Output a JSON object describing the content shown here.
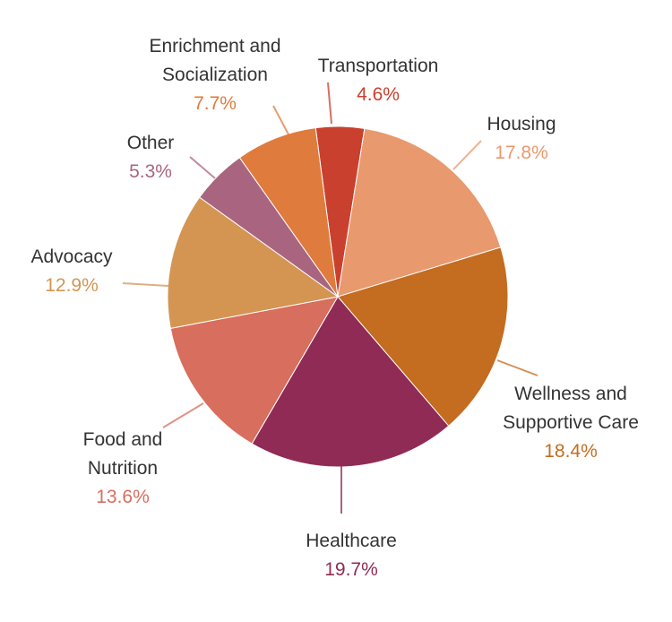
{
  "chart_data": {
    "type": "pie",
    "title": "",
    "slices": [
      {
        "label": "Transportation",
        "lines": [
          "Transportation"
        ],
        "value": 4.6,
        "value_label": "4.6%",
        "color": "#c9402e"
      },
      {
        "label": "Housing",
        "lines": [
          "Housing"
        ],
        "value": 17.8,
        "value_label": "17.8%",
        "color": "#e9996e"
      },
      {
        "label": "Wellness and Supportive Care",
        "lines": [
          "Wellness and",
          "Supportive Care"
        ],
        "value": 18.4,
        "value_label": "18.4%",
        "color": "#c46c20"
      },
      {
        "label": "Healthcare",
        "lines": [
          "Healthcare"
        ],
        "value": 19.7,
        "value_label": "19.7%",
        "color": "#902b55"
      },
      {
        "label": "Food and Nutrition",
        "lines": [
          "Food and",
          "Nutrition"
        ],
        "value": 13.6,
        "value_label": "13.6%",
        "color": "#d86e5d"
      },
      {
        "label": "Advocacy",
        "lines": [
          "Advocacy"
        ],
        "value": 12.9,
        "value_label": "12.9%",
        "color": "#d49553"
      },
      {
        "label": "Other",
        "lines": [
          "Other"
        ],
        "value": 5.3,
        "value_label": "5.3%",
        "color": "#a96580"
      },
      {
        "label": "Enrichment and Socialization",
        "lines": [
          "Enrichment and",
          "Socialization"
        ],
        "value": 7.7,
        "value_label": "7.7%",
        "color": "#e07b3e"
      }
    ]
  }
}
